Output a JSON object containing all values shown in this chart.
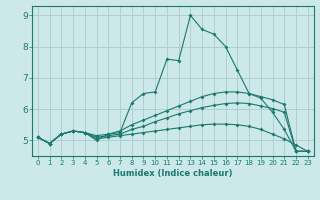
{
  "xlabel": "Humidex (Indice chaleur)",
  "bg_color": "#cce8e8",
  "grid_color": "#aacccc",
  "line_color": "#1a7a6e",
  "xlim": [
    -0.5,
    23.5
  ],
  "ylim": [
    4.5,
    9.3
  ],
  "xticks": [
    0,
    1,
    2,
    3,
    4,
    5,
    6,
    7,
    8,
    9,
    10,
    11,
    12,
    13,
    14,
    15,
    16,
    17,
    18,
    19,
    20,
    21,
    22,
    23
  ],
  "yticks": [
    5,
    6,
    7,
    8,
    9
  ],
  "lines": [
    {
      "x": [
        0,
        1,
        2,
        3,
        4,
        5,
        6,
        7,
        8,
        9,
        10,
        11,
        12,
        13,
        14,
        15,
        16,
        17,
        18,
        19,
        20,
        21,
        22,
        23
      ],
      "y": [
        5.1,
        4.9,
        5.2,
        5.3,
        5.25,
        5.0,
        5.2,
        5.25,
        6.2,
        6.5,
        6.55,
        7.6,
        7.55,
        9.0,
        8.55,
        8.4,
        8.0,
        7.25,
        6.5,
        6.35,
        5.9,
        5.35,
        4.65,
        4.65
      ]
    },
    {
      "x": [
        0,
        1,
        2,
        3,
        4,
        5,
        6,
        7,
        8,
        9,
        10,
        11,
        12,
        13,
        14,
        15,
        16,
        17,
        18,
        19,
        20,
        21,
        22,
        23
      ],
      "y": [
        5.1,
        4.9,
        5.2,
        5.3,
        5.25,
        5.15,
        5.2,
        5.3,
        5.5,
        5.65,
        5.8,
        5.95,
        6.1,
        6.25,
        6.4,
        6.5,
        6.55,
        6.55,
        6.5,
        6.4,
        6.3,
        6.15,
        4.65,
        4.65
      ]
    },
    {
      "x": [
        0,
        1,
        2,
        3,
        4,
        5,
        6,
        7,
        8,
        9,
        10,
        11,
        12,
        13,
        14,
        15,
        16,
        17,
        18,
        19,
        20,
        21,
        22,
        23
      ],
      "y": [
        5.1,
        4.9,
        5.2,
        5.3,
        5.25,
        5.1,
        5.15,
        5.2,
        5.35,
        5.45,
        5.6,
        5.72,
        5.85,
        5.95,
        6.05,
        6.12,
        6.18,
        6.2,
        6.18,
        6.1,
        6.02,
        5.9,
        4.65,
        4.65
      ]
    },
    {
      "x": [
        0,
        1,
        2,
        3,
        4,
        5,
        6,
        7,
        8,
        9,
        10,
        11,
        12,
        13,
        14,
        15,
        16,
        17,
        18,
        19,
        20,
        21,
        22,
        23
      ],
      "y": [
        5.1,
        4.9,
        5.2,
        5.3,
        5.25,
        5.05,
        5.1,
        5.15,
        5.2,
        5.25,
        5.3,
        5.35,
        5.4,
        5.45,
        5.5,
        5.52,
        5.52,
        5.5,
        5.45,
        5.35,
        5.2,
        5.05,
        4.85,
        4.65
      ]
    }
  ]
}
